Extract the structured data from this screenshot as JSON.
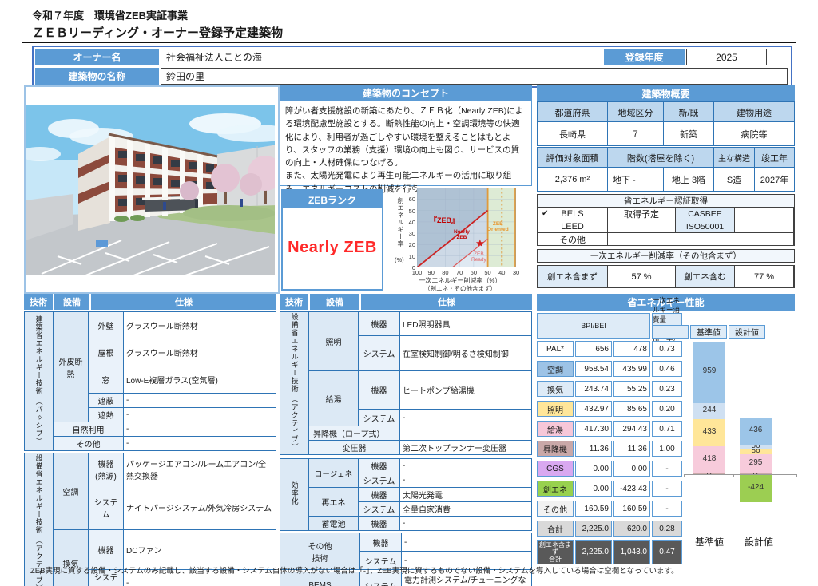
{
  "header": {
    "program": "令和７年度　環境省ZEB実証事業",
    "doc": "ＺＥＢリーディング・オーナー登録予定建築物"
  },
  "owner": {
    "owner_label": "オーナー名",
    "owner_value": "社会福祉法人ことの海",
    "reg_year_label": "登録年度",
    "reg_year_value": "2025",
    "building_label": "建築物の名称",
    "building_value": "鈴田の里"
  },
  "concept": {
    "title": "建築物のコンセプト",
    "body": "障がい者支援施設の新築にあたり、ＺＥＢ化（Nearly ZEB)による環境配慮型施設とする。断熱性能の向上・空調環境等の快適化により、利用者が過ごしやすい環境を整えることはもとより、スタッフの業務（支援）環境の向上も図り、サービスの質の向上・人材確保につなげる。\nまた、太陽光発電により再生可能エネルギーの活用に取り組み、エネルギーコストの削減を行う。"
  },
  "zeb_rank": {
    "header": "ZEBランク",
    "value": "Nearly ZEB",
    "value_color": "#FF2A2A"
  },
  "rank_chart": {
    "y_axis": "創エネルギー率",
    "y_unit": "(%)",
    "x_axis": "一次エネルギー削減率（%）",
    "x_axis_sub": "（創エネ・その他含まず）",
    "y_ticks": [
      70,
      60,
      50,
      40,
      30,
      20,
      10,
      0
    ],
    "x_ticks": [
      100,
      90,
      80,
      70,
      60,
      50,
      40,
      30
    ],
    "label_zeb": "『ZEB』",
    "label_nearly": "Nearly\nZEB",
    "label_ready": "ZEB\nReady",
    "label_oriented": "ZEB\nOriented",
    "star": "★",
    "star_x": 55,
    "star_y": 20
  },
  "overview": {
    "title": "建築物概要",
    "h1": [
      "都道府県",
      "地域区分",
      "新/既",
      "建物用途"
    ],
    "v1": [
      "長崎県",
      "7",
      "新築",
      "病院等"
    ],
    "h2": [
      "評価対象面積",
      "階数(塔屋を除く)",
      "主な構造",
      "竣工年"
    ],
    "v2": {
      "area": "2,376 m²",
      "below": "地下 -",
      "above": "地上 3階",
      "structure": "S造",
      "year": "2027年"
    }
  },
  "certification": {
    "title": "省エネルギー認証取得",
    "bels_check": "✔",
    "bels_label": "BELS",
    "bels_value": "取得予定",
    "casbee_label": "CASBEE",
    "casbee_value": "",
    "leed_label": "LEED",
    "leed_value": "",
    "iso_label": "ISO50001",
    "iso_value": "",
    "other_label": "その他",
    "other_value": ""
  },
  "reduction": {
    "title": "一次エネルギー削減率（その他含まず）",
    "without_label": "創エネ含まず",
    "without_value": "57 %",
    "with_label": "創エネ含む",
    "with_value": "77 %"
  },
  "passive": {
    "headers": {
      "tech": "技術",
      "equip": "設備",
      "spec": "仕様"
    },
    "tech1": "建築省エネルギー技術",
    "tech1_paren": "（パッシブ）",
    "envelope": "外皮断熱",
    "g1_rows": [
      {
        "sub": "外壁",
        "spec": "グラスウール断熱材"
      },
      {
        "sub": "屋根",
        "spec": "グラスウール断熱材"
      },
      {
        "sub": "窓",
        "spec": "Low-E複層ガラス(空気層)"
      },
      {
        "sub": "遮蔽",
        "spec": "-"
      },
      {
        "sub": "遮熱",
        "spec": "-"
      }
    ],
    "nature": {
      "label": "自然利用",
      "spec": "-"
    },
    "other": {
      "label": "その他",
      "spec": "-"
    },
    "tech2": "設備省エネルギー技術",
    "tech2_paren": "（アクティブ）",
    "hvac": "空調",
    "hvac_rows": [
      {
        "sub": "機器\n(熱源)",
        "spec": "パッケージエアコン/ルームエアコン/全熱交換器"
      },
      {
        "sub": "システム",
        "spec": "ナイトパージシステム/外気冷房システム"
      }
    ],
    "vent": "換気",
    "vent_rows": [
      {
        "sub": "機器",
        "spec": "DCファン"
      },
      {
        "sub": "システム",
        "spec": "-"
      }
    ]
  },
  "active": {
    "headers": {
      "tech": "技術",
      "equip": "設備",
      "spec": "仕様"
    },
    "tech1": "設備省エネルギー技術",
    "tech1_paren": "（アクティブ）",
    "lighting": "照明",
    "lighting_rows": [
      {
        "sub": "機器",
        "spec": "LED照明器具"
      },
      {
        "sub": "システム",
        "spec": "在室検知制御/明るさ検知制御"
      }
    ],
    "hotwater": "給湯",
    "hotwater_rows": [
      {
        "sub": "機器",
        "spec": "ヒートポンプ給湯機"
      },
      {
        "sub": "システム",
        "spec": "-"
      }
    ],
    "elevator": {
      "label": "昇降機（ロープ式）",
      "spec": ""
    },
    "transformer": {
      "label": "変圧器",
      "spec": "第二次トップランナー変圧器"
    },
    "efficiency": "効率化",
    "cogen": "コージェネ",
    "cogen_rows": [
      {
        "sub": "機器",
        "spec": "-"
      },
      {
        "sub": "システム",
        "spec": "-"
      }
    ],
    "renewable": "再エネ",
    "renewable_rows": [
      {
        "sub": "機器",
        "spec": "太陽光発電"
      },
      {
        "sub": "システム",
        "spec": "全量自家消費"
      }
    ],
    "battery": "蓄電池",
    "battery_rows": [
      {
        "sub": "機器",
        "spec": "-"
      }
    ],
    "othertech": {
      "label": "その他\n技術",
      "rows": [
        {
          "sub": "機器",
          "spec": "-"
        },
        {
          "sub": "システム",
          "spec": "-"
        }
      ]
    },
    "bems": {
      "label": "BEMS",
      "sub": "システム",
      "spec": "電力計測システム/チューニングなど運用時への展開"
    }
  },
  "performance": {
    "title": "省エネルギー性能",
    "consumption_header": "一次エネルギー消費量（MJ/㎡・年）",
    "bpi_header": "BPI/BEI",
    "col_base": "基準値",
    "col_design": "設計値",
    "rows": [
      {
        "label": "PAL*",
        "base": "656",
        "design": "478",
        "ratio": "0.73",
        "label_bg": "#FFFFFF",
        "cell_bg": "#FFFFFF"
      },
      {
        "label": "空調",
        "base": "958.54",
        "design": "435.99",
        "ratio": "0.46",
        "label_bg": "#9DC3E6",
        "cell_bg": "#FFFFFF"
      },
      {
        "label": "換気",
        "base": "243.74",
        "design": "55.25",
        "ratio": "0.23",
        "label_bg": "#DEEBF7",
        "cell_bg": "#FFFFFF"
      },
      {
        "label": "照明",
        "base": "432.97",
        "design": "85.65",
        "ratio": "0.20",
        "label_bg": "#FFE699",
        "cell_bg": "#FFFFFF"
      },
      {
        "label": "給湯",
        "base": "417.30",
        "design": "294.43",
        "ratio": "0.71",
        "label_bg": "#F7C7D8",
        "cell_bg": "#FFFFFF"
      },
      {
        "label": "昇降機",
        "base": "11.36",
        "design": "11.36",
        "ratio": "1.00",
        "label_bg": "#C9A8A8",
        "cell_bg": "#FFFFFF"
      },
      {
        "label": "CGS",
        "base": "0.00",
        "design": "0.00",
        "ratio": "-",
        "label_bg": "#D9A8F0",
        "cell_bg": "#FFFFFF"
      },
      {
        "label": "創エネ",
        "base": "0.00",
        "design": "-423.43",
        "ratio": "-",
        "label_bg": "#98D14E",
        "cell_bg": "#FFFFFF"
      },
      {
        "label": "その他",
        "base": "160.59",
        "design": "160.59",
        "ratio": "-",
        "label_bg": "#F2F2F2",
        "cell_bg": "#FFFFFF"
      },
      {
        "label": "合計",
        "base": "2,225.0",
        "design": "620.0",
        "ratio": "0.28",
        "label_bg": "#D9D9D9",
        "cell_bg": "#D9D9D9"
      }
    ],
    "total_ex": {
      "label": "創エネ含まず\n合計",
      "base": "2,225.0",
      "design": "1,043.0",
      "ratio": "0.47",
      "bg": "#595959"
    }
  },
  "chart_data": {
    "type": "bar",
    "stacked": true,
    "categories": [
      "基準値",
      "設計値"
    ],
    "series": [
      {
        "name": "昇降機",
        "values": [
          12,
          12
        ],
        "color": "#C9A8A8"
      },
      {
        "name": "給湯",
        "values": [
          418,
          295
        ],
        "color": "#F7CBDB"
      },
      {
        "name": "照明",
        "values": [
          433,
          86
        ],
        "color": "#FFE699"
      },
      {
        "name": "換気",
        "values": [
          244,
          56
        ],
        "color": "#CFE0F2"
      },
      {
        "name": "空調",
        "values": [
          959,
          436
        ],
        "color": "#9CC5E8"
      },
      {
        "name": "創エネ",
        "values": [
          0,
          -424
        ],
        "color": "#9CCE52"
      }
    ],
    "ylabel": "一次エネルギー消費量",
    "unit": "MJ/㎡・年"
  },
  "footnote": "ZEB実現に資する設備・システムのみ記載し、該当する設備・システム自体の導入がない場合は「-」、ZEB実現に資するものでない設備・システムを導入している場合は空欄となっています。"
}
